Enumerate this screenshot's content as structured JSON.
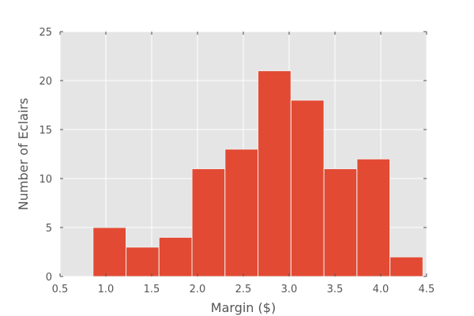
{
  "chart_data": {
    "type": "bar",
    "subtype": "histogram",
    "title": "",
    "xlabel": "Margin ($)",
    "ylabel": "Number of Eclairs",
    "xlim": [
      0.5,
      4.5
    ],
    "ylim": [
      0,
      25
    ],
    "grid": true,
    "xticks": [
      "0.5",
      "1.0",
      "1.5",
      "2.0",
      "2.5",
      "3.0",
      "3.5",
      "4.0",
      "4.5"
    ],
    "yticks": [
      "0",
      "5",
      "10",
      "15",
      "20",
      "25"
    ],
    "bins": [
      {
        "start": 0.86,
        "end": 1.22,
        "count": 5
      },
      {
        "start": 1.22,
        "end": 1.58,
        "count": 3
      },
      {
        "start": 1.58,
        "end": 1.94,
        "count": 4
      },
      {
        "start": 1.94,
        "end": 2.3,
        "count": 11
      },
      {
        "start": 2.3,
        "end": 2.66,
        "count": 13
      },
      {
        "start": 2.66,
        "end": 3.02,
        "count": 21
      },
      {
        "start": 3.02,
        "end": 3.38,
        "count": 18
      },
      {
        "start": 3.38,
        "end": 3.74,
        "count": 11
      },
      {
        "start": 3.74,
        "end": 4.1,
        "count": 12
      },
      {
        "start": 4.1,
        "end": 4.46,
        "count": 2
      }
    ],
    "colors": {
      "bar": "#E24A33",
      "bar_edge": "#EEEEEE",
      "plot_background": "#E5E5E5",
      "grid": "#FFFFFF",
      "tick": "#555555",
      "text": "#555555"
    }
  }
}
